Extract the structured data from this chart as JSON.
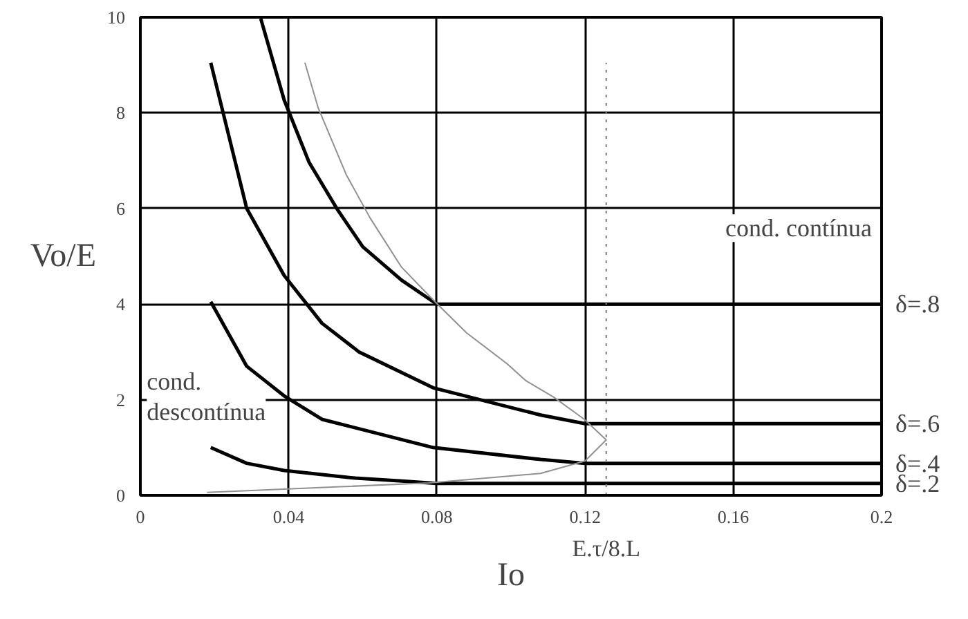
{
  "chart_data": {
    "type": "line",
    "xlabel": "Io",
    "ylabel": "Vo/E",
    "xlim": [
      0,
      0.2
    ],
    "ylim": [
      0,
      10
    ],
    "xticks": [
      0,
      0.04,
      0.08,
      0.12,
      0.16,
      0.2
    ],
    "yticks": [
      0,
      2,
      4,
      6,
      8,
      10
    ],
    "grid": true,
    "series": [
      {
        "name": "δ=.8",
        "color": "#000000",
        "x": [
          0.0325,
          0.0388,
          0.0455,
          0.053,
          0.06,
          0.0705,
          0.08,
          0.2
        ],
        "values": [
          9.97,
          8.27,
          6.97,
          6.0,
          5.2,
          4.5,
          4,
          4
        ]
      },
      {
        "name": "δ=.6",
        "color": "#000000",
        "x": [
          0.019,
          0.0287,
          0.0388,
          0.049,
          0.059,
          0.079,
          0.108,
          0.12,
          0.2
        ],
        "values": [
          9.05,
          6.0,
          4.6,
          3.6,
          3.0,
          2.25,
          1.68,
          1.5,
          1.5
        ]
      },
      {
        "name": "δ=.4",
        "color": "#000000",
        "x": [
          0.019,
          0.0287,
          0.0388,
          0.049,
          0.079,
          0.108,
          0.12,
          0.2
        ],
        "values": [
          4.05,
          2.7,
          2.08,
          1.59,
          1.0,
          0.75,
          0.67,
          0.67
        ]
      },
      {
        "name": "δ=.2",
        "color": "#000000",
        "x": [
          0.019,
          0.0287,
          0.0388,
          0.058,
          0.0705,
          0.08,
          0.2
        ],
        "values": [
          1.0,
          0.67,
          0.52,
          0.36,
          0.3,
          0.25,
          0.25
        ]
      },
      {
        "color": "#909090",
        "x": [
          0.0444,
          0.048,
          0.0556,
          0.062,
          0.0705,
          0.0795,
          0.088,
          0.099,
          0.104,
          0.1116,
          0.1198,
          0.1257,
          0.12,
          0.108,
          0.078,
          0.018
        ],
        "values": [
          9.05,
          8.1,
          6.7,
          5.8,
          4.77,
          4.05,
          3.4,
          2.75,
          2.4,
          2.05,
          1.59,
          1.16,
          0.72,
          0.46,
          0.26,
          0.06
        ]
      }
    ],
    "ref_lines": [
      {
        "axis": "x",
        "value": 0.1257,
        "label": "E.τ/8.L",
        "line_style": "dotted",
        "color": "#808080"
      }
    ],
    "annotations": [
      "cond. contínua",
      "cond.\ndescontínua"
    ]
  }
}
